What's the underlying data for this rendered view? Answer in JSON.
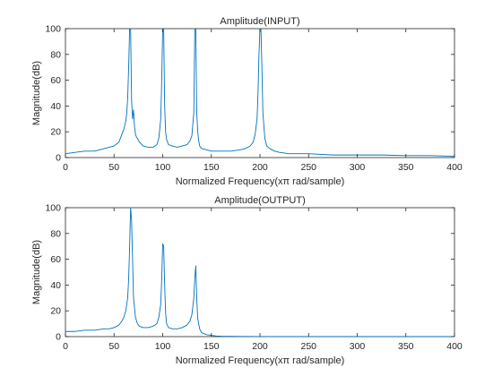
{
  "figure": {
    "line_color": "#0072bd",
    "axis_color": "#262626"
  },
  "chart_data": [
    {
      "type": "line",
      "title": "Amplitude(INPUT)",
      "xlabel": "Normalized Frequency(xπ rad/sample)",
      "ylabel": "Magnitude(dB)",
      "xlim": [
        0,
        400
      ],
      "ylim": [
        0,
        100
      ],
      "xticks": [
        0,
        50,
        100,
        150,
        200,
        250,
        300,
        350,
        400
      ],
      "yticks": [
        0,
        20,
        40,
        60,
        80,
        100
      ],
      "xtick_labels": [
        "0",
        "50",
        "100",
        "150",
        "200",
        "250",
        "300",
        "350",
        "400"
      ],
      "ytick_labels": [
        "0",
        "20",
        "40",
        "60",
        "80",
        "100"
      ],
      "grid": false,
      "series": [
        {
          "x": [
            0,
            10,
            20,
            30,
            40,
            50,
            55,
            58,
            60,
            62,
            63,
            64,
            65,
            66,
            67,
            68,
            69,
            70,
            71,
            72,
            73,
            74,
            76,
            80,
            85,
            90,
            94,
            96,
            98,
            99,
            100,
            101,
            102,
            103,
            104,
            106,
            110,
            115,
            120,
            125,
            128,
            130,
            132,
            133,
            134,
            135,
            136,
            137,
            138,
            140,
            145,
            150,
            160,
            170,
            180,
            185,
            190,
            193,
            195,
            197,
            198,
            199,
            200,
            201,
            202,
            203,
            205,
            207,
            210,
            215,
            220,
            230,
            250,
            275,
            300,
            325,
            350,
            375,
            400
          ],
          "y": [
            3,
            4,
            5,
            5,
            7,
            9,
            12,
            18,
            22,
            28,
            34,
            46,
            70,
            100,
            100,
            45,
            30,
            37,
            24,
            18,
            16,
            15,
            12,
            9,
            8,
            8,
            10,
            15,
            30,
            60,
            100,
            100,
            40,
            20,
            14,
            10,
            9,
            8,
            9,
            10,
            13,
            17,
            35,
            100,
            100,
            35,
            20,
            13,
            9,
            7,
            6,
            5,
            5,
            5,
            6,
            7,
            9,
            12,
            18,
            30,
            50,
            80,
            100,
            100,
            70,
            35,
            15,
            9,
            7,
            5,
            4,
            3,
            3,
            2,
            2,
            2,
            1.5,
            1.5,
            1
          ]
        }
      ]
    },
    {
      "type": "line",
      "title": "Amplitude(OUTPUT)",
      "xlabel": "Normalized Frequency(xπ rad/sample)",
      "ylabel": "Magnitude(dB)",
      "xlim": [
        0,
        400
      ],
      "ylim": [
        0,
        100
      ],
      "xticks": [
        0,
        50,
        100,
        150,
        200,
        250,
        300,
        350,
        400
      ],
      "yticks": [
        0,
        20,
        40,
        60,
        80,
        100
      ],
      "xtick_labels": [
        "0",
        "50",
        "100",
        "150",
        "200",
        "250",
        "300",
        "350",
        "400"
      ],
      "ytick_labels": [
        "0",
        "20",
        "40",
        "60",
        "80",
        "100"
      ],
      "grid": false,
      "series": [
        {
          "x": [
            0,
            10,
            20,
            30,
            40,
            45,
            50,
            55,
            58,
            60,
            62,
            64,
            65,
            66,
            67,
            68,
            69,
            70,
            72,
            74,
            76,
            80,
            85,
            90,
            94,
            96,
            98,
            99,
            100,
            101,
            102,
            103,
            104,
            106,
            110,
            115,
            120,
            125,
            128,
            130,
            132,
            133,
            134,
            135,
            136,
            138,
            140,
            145,
            150,
            155,
            160,
            170,
            180,
            200,
            250,
            300,
            350,
            400
          ],
          "y": [
            4,
            4,
            5,
            5,
            6,
            6,
            7,
            9,
            12,
            15,
            20,
            30,
            45,
            70,
            100,
            90,
            60,
            30,
            15,
            10,
            8,
            7,
            7,
            8,
            10,
            15,
            25,
            45,
            72,
            70,
            40,
            18,
            10,
            7,
            6,
            6,
            7,
            9,
            12,
            17,
            30,
            45,
            55,
            30,
            14,
            6,
            3,
            1.5,
            1,
            0.5,
            0.3,
            0.2,
            0.1,
            0,
            0,
            0,
            0,
            0
          ]
        }
      ]
    }
  ]
}
